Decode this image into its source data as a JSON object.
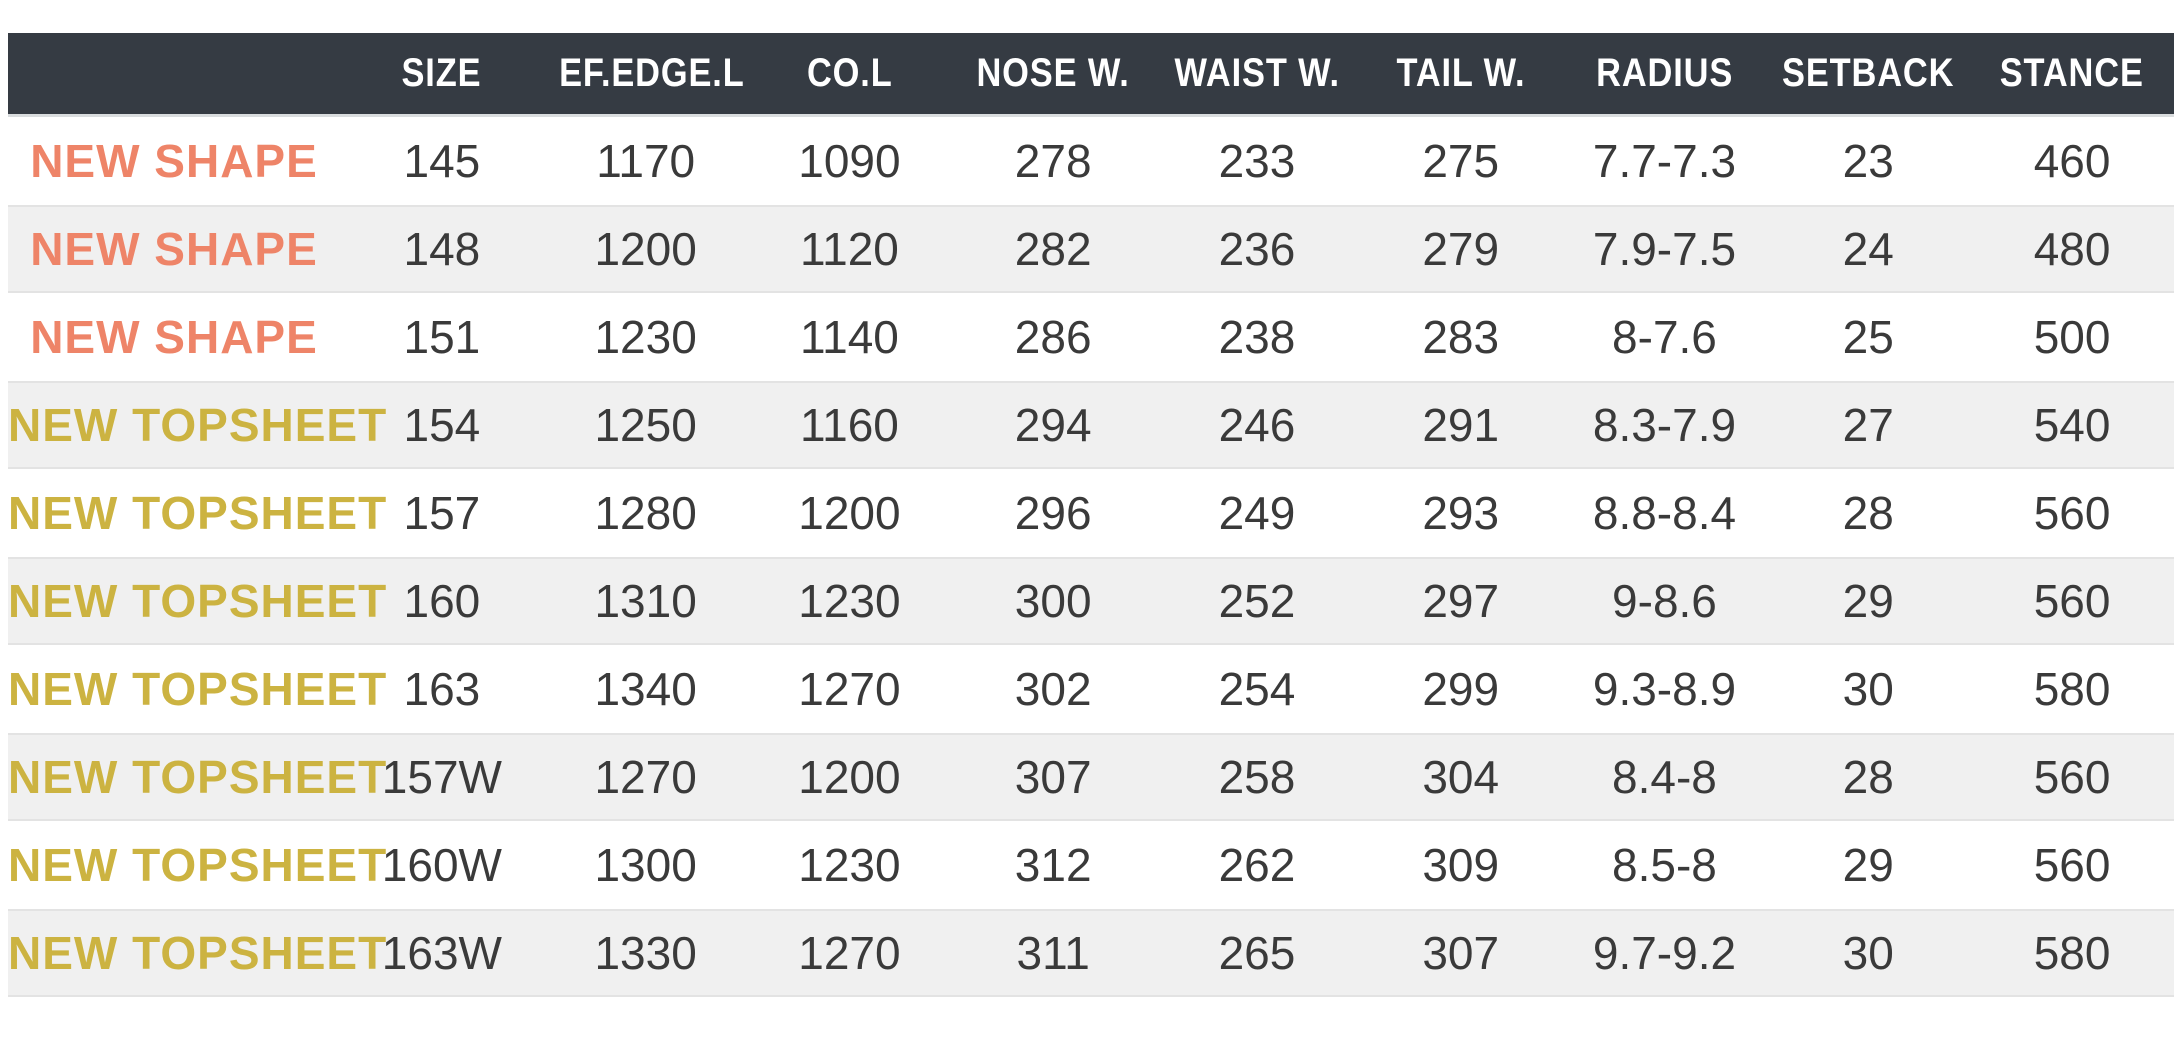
{
  "chart_data": {
    "type": "table",
    "columns": [
      "",
      "SIZE",
      "EF.EDGE.L",
      "CO.L",
      "NOSE W.",
      "WAIST W.",
      "TAIL W.",
      "RADIUS",
      "SETBACK",
      "STANCE"
    ],
    "rows": [
      {
        "tag": "NEW SHAPE",
        "tag_type": "new-shape",
        "values": [
          "145",
          "1170",
          "1090",
          "278",
          "233",
          "275",
          "7.7-7.3",
          "23",
          "460"
        ]
      },
      {
        "tag": "NEW SHAPE",
        "tag_type": "new-shape",
        "values": [
          "148",
          "1200",
          "1120",
          "282",
          "236",
          "279",
          "7.9-7.5",
          "24",
          "480"
        ]
      },
      {
        "tag": "NEW SHAPE",
        "tag_type": "new-shape",
        "values": [
          "151",
          "1230",
          "1140",
          "286",
          "238",
          "283",
          "8-7.6",
          "25",
          "500"
        ]
      },
      {
        "tag": "NEW TOPSHEET",
        "tag_type": "new-topsheet",
        "values": [
          "154",
          "1250",
          "1160",
          "294",
          "246",
          "291",
          "8.3-7.9",
          "27",
          "540"
        ]
      },
      {
        "tag": "NEW TOPSHEET",
        "tag_type": "new-topsheet",
        "values": [
          "157",
          "1280",
          "1200",
          "296",
          "249",
          "293",
          "8.8-8.4",
          "28",
          "560"
        ]
      },
      {
        "tag": "NEW TOPSHEET",
        "tag_type": "new-topsheet",
        "values": [
          "160",
          "1310",
          "1230",
          "300",
          "252",
          "297",
          "9-8.6",
          "29",
          "560"
        ]
      },
      {
        "tag": "NEW TOPSHEET",
        "tag_type": "new-topsheet",
        "values": [
          "163",
          "1340",
          "1270",
          "302",
          "254",
          "299",
          "9.3-8.9",
          "30",
          "580"
        ]
      },
      {
        "tag": "NEW TOPSHEET",
        "tag_type": "new-topsheet",
        "values": [
          "157W",
          "1270",
          "1200",
          "307",
          "258",
          "304",
          "8.4-8",
          "28",
          "560"
        ]
      },
      {
        "tag": "NEW TOPSHEET",
        "tag_type": "new-topsheet",
        "values": [
          "160W",
          "1300",
          "1230",
          "312",
          "262",
          "309",
          "8.5-8",
          "29",
          "560"
        ]
      },
      {
        "tag": "NEW TOPSHEET",
        "tag_type": "new-topsheet",
        "values": [
          "163W",
          "1330",
          "1270",
          "311",
          "265",
          "307",
          "9.7-9.2",
          "30",
          "580"
        ]
      }
    ],
    "layout": {
      "striped": true,
      "header_position": "top",
      "first_column": "row-tag"
    }
  },
  "colors": {
    "header_bg": "#353b43",
    "header_border": "#d9dcde",
    "header_text": "#ffffff",
    "row_alt_bg": "#f0f0f0",
    "row_border": "#e3e3e3",
    "value_text": "#3a3a3a",
    "new_shape": "#ee8468",
    "new_topsheet": "#ccb341"
  }
}
